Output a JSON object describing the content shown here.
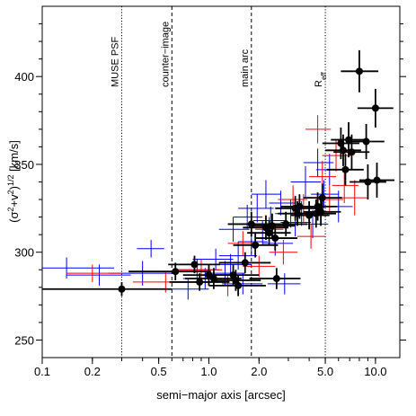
{
  "chart_data": {
    "type": "scatter",
    "xlabel": "semi−major axis [arcsec]",
    "ylabel": "(σ²+v²)¹ᐟ² [km/s]",
    "ylabel_parts": {
      "pre": "(σ",
      "sup1": "2",
      "mid": "+v",
      "sup2": "2",
      "close": ")",
      "sup3": "1/2",
      "post": " [km/s]"
    },
    "xscale": "log",
    "xlim": [
      0.1,
      14
    ],
    "ylim": [
      240,
      440
    ],
    "x_ticks": [
      0.1,
      0.2,
      0.5,
      1.0,
      2.0,
      5.0,
      10.0
    ],
    "x_tick_labels": [
      "0.1",
      "0.2",
      "0.5",
      "1.0",
      "2.0",
      "5.0",
      "10.0"
    ],
    "y_ticks": [
      250,
      300,
      350,
      400
    ],
    "y_tick_labels": [
      "250",
      "300",
      "350",
      "400"
    ],
    "grid": false,
    "vertical_lines": [
      {
        "x": 0.3,
        "label": "MUSE PSF",
        "style": "dotted"
      },
      {
        "x": 0.6,
        "label": "counter−image",
        "style": "dashed"
      },
      {
        "x": 1.8,
        "label": "main arc",
        "style": "dashed"
      },
      {
        "x": 5.0,
        "label": "R",
        "label_sub": "eff",
        "style": "dotted"
      }
    ],
    "series": [
      {
        "color": "#0000ff",
        "marker": "none",
        "points": [
          {
            "x": 0.14,
            "y": 291,
            "xerr": [
              0.04,
              0.13
            ],
            "yerr": 6
          },
          {
            "x": 0.22,
            "y": 287,
            "xerr": [
              0.08,
              0.12
            ],
            "yerr": 6
          },
          {
            "x": 0.4,
            "y": 288,
            "xerr": [
              0.15,
              0.22
            ],
            "yerr": 7
          },
          {
            "x": 0.45,
            "y": 302,
            "xerr": [
              0.08,
              0.09
            ],
            "yerr": 5
          },
          {
            "x": 0.75,
            "y": 279,
            "xerr": [
              0.22,
              0.25
            ],
            "yerr": 6
          },
          {
            "x": 0.85,
            "y": 290,
            "xerr": [
              0.2,
              0.3
            ],
            "yerr": 6
          },
          {
            "x": 0.95,
            "y": 285,
            "xerr": [
              0.25,
              0.35
            ],
            "yerr": 6
          },
          {
            "x": 1.1,
            "y": 296,
            "xerr": [
              0.3,
              0.3
            ],
            "yerr": 6
          },
          {
            "x": 1.25,
            "y": 288,
            "xerr": [
              0.3,
              0.4
            ],
            "yerr": 7
          },
          {
            "x": 1.35,
            "y": 293,
            "xerr": [
              0.35,
              0.45
            ],
            "yerr": 6
          },
          {
            "x": 1.4,
            "y": 313,
            "xerr": [
              0.25,
              0.35
            ],
            "yerr": 7
          },
          {
            "x": 1.5,
            "y": 298,
            "xerr": [
              0.35,
              0.45
            ],
            "yerr": 8
          },
          {
            "x": 1.6,
            "y": 282,
            "xerr": [
              0.4,
              0.5
            ],
            "yerr": 6
          },
          {
            "x": 1.7,
            "y": 320,
            "xerr": [
              0.3,
              0.4
            ],
            "yerr": 7
          },
          {
            "x": 1.8,
            "y": 306,
            "xerr": [
              0.3,
              0.45
            ],
            "yerr": 7
          },
          {
            "x": 1.95,
            "y": 325,
            "xerr": [
              0.45,
              0.5
            ],
            "yerr": 8
          },
          {
            "x": 2.1,
            "y": 311,
            "xerr": [
              0.4,
              0.6
            ],
            "yerr": 7
          },
          {
            "x": 2.2,
            "y": 333,
            "xerr": [
              0.4,
              0.5
            ],
            "yerr": 8
          },
          {
            "x": 2.35,
            "y": 318,
            "xerr": [
              0.5,
              0.6
            ],
            "yerr": 8
          },
          {
            "x": 2.5,
            "y": 305,
            "xerr": [
              0.4,
              0.7
            ],
            "yerr": 7
          },
          {
            "x": 2.7,
            "y": 328,
            "xerr": [
              0.4,
              0.6
            ],
            "yerr": 7
          },
          {
            "x": 2.85,
            "y": 282,
            "xerr": [
              0.6,
              0.7
            ],
            "yerr": 6
          },
          {
            "x": 3.1,
            "y": 322,
            "xerr": [
              0.6,
              0.8
            ],
            "yerr": 8
          },
          {
            "x": 3.3,
            "y": 317,
            "xerr": [
              0.6,
              0.8
            ],
            "yerr": 8
          },
          {
            "x": 3.6,
            "y": 322,
            "xerr": [
              0.7,
              0.9
            ],
            "yerr": 7
          },
          {
            "x": 3.8,
            "y": 340,
            "xerr": [
              0.7,
              0.9
            ],
            "yerr": 9
          },
          {
            "x": 4.2,
            "y": 316,
            "xerr": [
              0.8,
              1.0
            ],
            "yerr": 8
          },
          {
            "x": 4.5,
            "y": 351,
            "xerr": [
              0.8,
              1.1
            ],
            "yerr": 8
          },
          {
            "x": 4.9,
            "y": 333,
            "xerr": [
              0.8,
              1.1
            ],
            "yerr": 8
          },
          {
            "x": 5.3,
            "y": 347,
            "xerr": [
              0.9,
              1.2
            ],
            "yerr": 9
          },
          {
            "x": 6.0,
            "y": 326,
            "xerr": [
              1.0,
              1.3
            ],
            "yerr": 9
          }
        ]
      },
      {
        "color": "#ff0000",
        "marker": "none",
        "points": [
          {
            "x": 0.2,
            "y": 288,
            "xerr": [
              0.06,
              0.1
            ],
            "yerr": 5
          },
          {
            "x": 0.55,
            "y": 283,
            "xerr": [
              0.2,
              0.25
            ],
            "yerr": 6
          },
          {
            "x": 0.9,
            "y": 290,
            "xerr": [
              0.25,
              0.3
            ],
            "yerr": 6
          },
          {
            "x": 1.3,
            "y": 281,
            "xerr": [
              0.3,
              0.4
            ],
            "yerr": 6
          },
          {
            "x": 1.6,
            "y": 305,
            "xerr": [
              0.3,
              0.4
            ],
            "yerr": 7
          },
          {
            "x": 2.0,
            "y": 292,
            "xerr": [
              0.4,
              0.5
            ],
            "yerr": 6
          },
          {
            "x": 2.3,
            "y": 313,
            "xerr": [
              0.4,
              0.5
            ],
            "yerr": 7
          },
          {
            "x": 2.8,
            "y": 300,
            "xerr": [
              0.5,
              0.6
            ],
            "yerr": 7
          },
          {
            "x": 3.2,
            "y": 330,
            "xerr": [
              0.6,
              0.7
            ],
            "yerr": 8
          },
          {
            "x": 3.7,
            "y": 325,
            "xerr": [
              0.6,
              0.8
            ],
            "yerr": 8
          },
          {
            "x": 4.1,
            "y": 309,
            "xerr": [
              0.7,
              0.9
            ],
            "yerr": 7
          },
          {
            "x": 4.5,
            "y": 370,
            "xerr": [
              0.7,
              0.9
            ],
            "yerr": 8
          },
          {
            "x": 4.8,
            "y": 343,
            "xerr": [
              0.8,
              1.0
            ],
            "yerr": 9
          },
          {
            "x": 5.3,
            "y": 330,
            "xerr": [
              0.9,
              1.1
            ],
            "yerr": 8
          },
          {
            "x": 5.8,
            "y": 355,
            "xerr": [
              1.0,
              1.3
            ],
            "yerr": 9
          },
          {
            "x": 6.5,
            "y": 338,
            "xerr": [
              1.0,
              1.4
            ],
            "yerr": 10
          },
          {
            "x": 7.5,
            "y": 331,
            "xerr": [
              1.2,
              1.6
            ],
            "yerr": 10
          }
        ]
      },
      {
        "color": "#000000",
        "marker": "filled-circle",
        "points": [
          {
            "x": 0.3,
            "y": 279,
            "xerr": [
              0.2,
              0.3
            ],
            "yerr": 4
          },
          {
            "x": 0.63,
            "y": 289,
            "xerr": [
              0.3,
              0.4
            ],
            "yerr": 5
          },
          {
            "x": 0.82,
            "y": 293,
            "xerr": [
              0.25,
              0.35
            ],
            "yerr": 5
          },
          {
            "x": 0.88,
            "y": 283,
            "xerr": [
              0.3,
              0.45
            ],
            "yerr": 5
          },
          {
            "x": 1.0,
            "y": 287,
            "xerr": [
              0.3,
              0.4
            ],
            "yerr": 6
          },
          {
            "x": 1.07,
            "y": 285,
            "xerr": [
              0.35,
              0.5
            ],
            "yerr": 6
          },
          {
            "x": 1.4,
            "y": 287,
            "xerr": [
              0.4,
              0.6
            ],
            "yerr": 6
          },
          {
            "x": 1.45,
            "y": 284,
            "xerr": [
              0.4,
              0.6
            ],
            "yerr": 6
          },
          {
            "x": 1.5,
            "y": 281,
            "xerr": [
              0.5,
              0.7
            ],
            "yerr": 6
          },
          {
            "x": 1.65,
            "y": 294,
            "xerr": [
              0.5,
              0.7
            ],
            "yerr": 6
          },
          {
            "x": 1.8,
            "y": 316,
            "xerr": [
              0.5,
              0.7
            ],
            "yerr": 7
          },
          {
            "x": 1.9,
            "y": 304,
            "xerr": [
              0.5,
              0.7
            ],
            "yerr": 7
          },
          {
            "x": 2.2,
            "y": 314,
            "xerr": [
              0.6,
              0.8
            ],
            "yerr": 7
          },
          {
            "x": 2.3,
            "y": 311,
            "xerr": [
              0.6,
              0.8
            ],
            "yerr": 7
          },
          {
            "x": 2.4,
            "y": 315,
            "xerr": [
              0.6,
              0.9
            ],
            "yerr": 7
          },
          {
            "x": 2.5,
            "y": 308,
            "xerr": [
              0.6,
              0.9
            ],
            "yerr": 7
          },
          {
            "x": 2.55,
            "y": 285,
            "xerr": [
              0.8,
              1.0
            ],
            "yerr": 6
          },
          {
            "x": 2.9,
            "y": 316,
            "xerr": [
              0.7,
              1.0
            ],
            "yerr": 7
          },
          {
            "x": 3.3,
            "y": 325,
            "xerr": [
              0.8,
              1.1
            ],
            "yerr": 7
          },
          {
            "x": 3.4,
            "y": 322,
            "xerr": [
              0.8,
              1.1
            ],
            "yerr": 7
          },
          {
            "x": 3.5,
            "y": 326,
            "xerr": [
              0.8,
              1.2
            ],
            "yerr": 7
          },
          {
            "x": 4.0,
            "y": 321,
            "xerr": [
              0.9,
              1.3
            ],
            "yerr": 8
          },
          {
            "x": 4.4,
            "y": 322,
            "xerr": [
              1.0,
              1.4
            ],
            "yerr": 8
          },
          {
            "x": 4.5,
            "y": 326,
            "xerr": [
              1.0,
              1.4
            ],
            "yerr": 8
          },
          {
            "x": 4.7,
            "y": 323,
            "xerr": [
              1.0,
              1.5
            ],
            "yerr": 8
          },
          {
            "x": 4.8,
            "y": 331,
            "xerr": [
              1.1,
              1.5
            ],
            "yerr": 8
          },
          {
            "x": 6.2,
            "y": 362,
            "xerr": [
              1.4,
              1.8
            ],
            "yerr": 9
          },
          {
            "x": 6.4,
            "y": 358,
            "xerr": [
              1.4,
              1.8
            ],
            "yerr": 9
          },
          {
            "x": 6.6,
            "y": 347,
            "xerr": [
              1.5,
              1.9
            ],
            "yerr": 9
          },
          {
            "x": 6.9,
            "y": 364,
            "xerr": [
              1.5,
              2.0
            ],
            "yerr": 10
          },
          {
            "x": 7.2,
            "y": 357,
            "xerr": [
              1.6,
              2.0
            ],
            "yerr": 10
          },
          {
            "x": 8.0,
            "y": 403,
            "xerr": [
              1.8,
              2.4
            ],
            "yerr": 12
          },
          {
            "x": 8.8,
            "y": 363,
            "xerr": [
              1.9,
              2.5
            ],
            "yerr": 10
          },
          {
            "x": 9.0,
            "y": 340,
            "xerr": [
              2.0,
              2.6
            ],
            "yerr": 10
          },
          {
            "x": 10.0,
            "y": 382,
            "xerr": [
              2.2,
              2.8
            ],
            "yerr": 11
          },
          {
            "x": 10.2,
            "y": 341,
            "xerr": [
              2.2,
              2.8
            ],
            "yerr": 10
          }
        ]
      }
    ]
  }
}
